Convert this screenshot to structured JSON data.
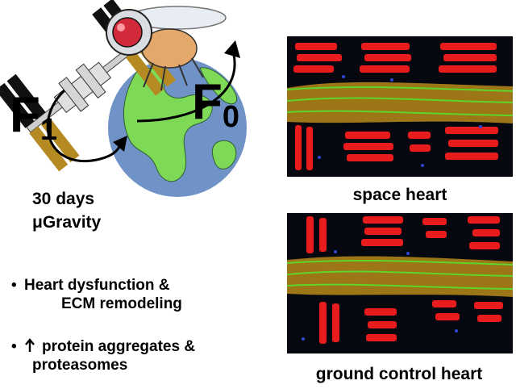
{
  "figure": {
    "generations": {
      "f1_letter": "F",
      "f1_sub": "1",
      "f0_letter": "F",
      "f0_sub": "0"
    },
    "duration_line1": "30 days",
    "duration_line2": "μGravity",
    "findings": [
      {
        "line1": "Heart dysfunction &",
        "line2": "ECM remodeling"
      },
      {
        "arrow_icon": "up-arrow-icon",
        "line1": "protein aggregates &",
        "line2": "proteasomes"
      }
    ],
    "panels": [
      {
        "caption": "space  heart"
      },
      {
        "caption": "ground control heart"
      }
    ],
    "colors": {
      "earth_ocean": "#6f93c7",
      "earth_land": "#7ed957",
      "solar_panel": "#b58a22",
      "muscle_red": "#e81c1c",
      "fiber_green": "#5fd42a",
      "nuclei_blue": "#2d46d6"
    }
  }
}
